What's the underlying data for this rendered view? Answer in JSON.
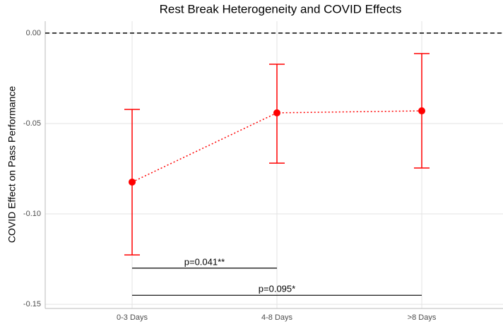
{
  "chart_data": {
    "type": "errorbar",
    "title": "Rest Break Heterogeneity and COVID Effects",
    "y_label": "COVID Effect on Pass Performance",
    "categories": [
      "0-3 Days",
      "4-8 Days",
      ">8 Days"
    ],
    "series": [
      {
        "color": "#ff0000",
        "values": [
          -0.0824,
          -0.0441,
          -0.043
        ],
        "lower": [
          -0.1227,
          -0.0719,
          -0.0746
        ],
        "upper": [
          -0.0422,
          -0.0172,
          -0.0113
        ]
      }
    ],
    "reference_line": 0,
    "annotations": [
      {
        "text": "p=0.041**",
        "y": -0.13,
        "from": "0-3 Days",
        "to": "4-8 Days"
      },
      {
        "text": "p=0.095*",
        "y": -0.145,
        "from": "0-3 Days",
        "to": ">8 Days"
      }
    ],
    "ylim": [
      -0.1523,
      0.0066
    ],
    "yticks": [
      {
        "value": -0.15,
        "label": "-0.15"
      },
      {
        "value": -0.1,
        "label": "-0.10"
      },
      {
        "value": -0.05,
        "label": "-0.05"
      },
      {
        "value": 0,
        "label": "0.00"
      }
    ],
    "grid": true
  }
}
